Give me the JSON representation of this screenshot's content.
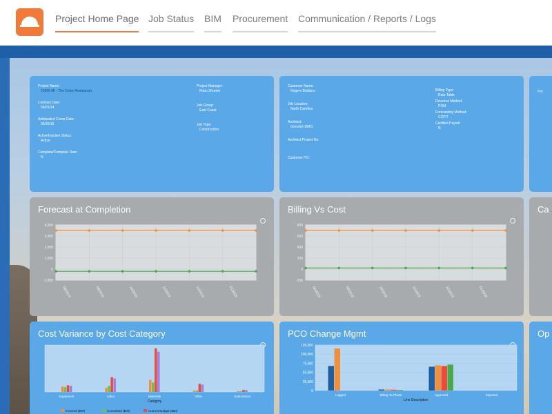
{
  "nav": {
    "logo_icon": "dome-logo-icon",
    "items": [
      {
        "label": "Project Home Page",
        "active": true
      },
      {
        "label": "Job Status",
        "active": false
      },
      {
        "label": "BIM",
        "active": false
      },
      {
        "label": "Procurement",
        "active": false
      },
      {
        "label": "Communication / Reports / Logs",
        "active": false
      }
    ]
  },
  "colors": {
    "accent": "#f07a3a",
    "panel_blue": "#5aa8e8",
    "panel_gray": "#a8abae",
    "header_blue": "#1f5fa8"
  },
  "project_card": {
    "left_fields": [
      {
        "label": "Project Name:",
        "value": "10200 MI - The Dolce Restaurant"
      },
      {
        "label": "Contract Date:",
        "value": "06/01/14"
      },
      {
        "label": "Anticipated Comp Date:",
        "value": "06/30/15"
      },
      {
        "label": "Active/Inactive Status:",
        "value": "Active"
      },
      {
        "label": "Complete/Complete Date:",
        "value": "N"
      }
    ],
    "right_fields": [
      {
        "label": "Project Manager:",
        "value": "Brian Shumer"
      },
      {
        "label": "Job Group:",
        "value": "East Coast"
      },
      {
        "label": "Job Type:",
        "value": "Construction"
      }
    ]
  },
  "customer_card": {
    "left_fields": [
      {
        "label": "Customer Name:",
        "value": "Rogers Builders"
      },
      {
        "label": "Job Location:",
        "value": "North Carolina"
      },
      {
        "label": "Architect:",
        "value": "Grendel IDMG"
      },
      {
        "label": "Architect Project No:",
        "value": ""
      },
      {
        "label": "Customer PO:",
        "value": ""
      }
    ],
    "right_fields": [
      {
        "label": "Billing Type:",
        "value": "Rate Table"
      },
      {
        "label": "Revenue Method:",
        "value": "POM"
      },
      {
        "label": "Forecasting Method:",
        "value": "CCFIT"
      },
      {
        "label": "Certified Payroll:",
        "value": "N"
      }
    ]
  },
  "third_card_label": "Pro",
  "fourth_card_label": "Ca",
  "fifth_card_label": "Op",
  "chart_data": [
    {
      "type": "line",
      "title": "Forecast at Completion",
      "ytick_labels": [
        "4,000",
        "3,000",
        "2,000",
        "1,000",
        "0",
        "-1,000"
      ],
      "xtick_labels": [
        "08/2019",
        "09/2019",
        "10/2019",
        "11/2019",
        "12/2019",
        "01/2020"
      ],
      "series": [
        {
          "color": "#f0903c",
          "values": [
            3.5,
            3.5,
            3.5,
            3.5,
            3.5,
            3.5,
            3.5
          ]
        },
        {
          "color": "#4aa84a",
          "values": [
            -0.2,
            -0.2,
            -0.2,
            -0.2,
            -0.2,
            -0.2,
            -0.2
          ]
        }
      ],
      "ylim": [
        -1,
        4
      ]
    },
    {
      "type": "line",
      "title": "Billing Vs Cost",
      "ytick_labels": [
        "800",
        "600",
        "400",
        "200",
        "0",
        "-200"
      ],
      "xtick_labels": [
        "08/2019",
        "09/2019",
        "10/2019",
        "11/2019",
        "12/2019",
        "01/2020"
      ],
      "series": [
        {
          "color": "#f0903c",
          "values": [
            700,
            700,
            700,
            700,
            700,
            700,
            700
          ]
        },
        {
          "color": "#4aa84a",
          "values": [
            20,
            20,
            20,
            20,
            20,
            20,
            20
          ]
        }
      ],
      "ylim": [
        -200,
        800
      ]
    },
    {
      "type": "bar",
      "title": "Cost Variance by Cost Category",
      "xlabel": "Category",
      "categories": [
        "Equipment",
        "Labor",
        "Materials",
        "Other",
        "Subcontract"
      ],
      "series": [
        {
          "name": "Incurred ($00)",
          "color": "#f0903c",
          "values": [
            8,
            6,
            18,
            2,
            1
          ]
        },
        {
          "name": "Committed ($00)",
          "color": "#6cc24a",
          "values": [
            7,
            9,
            14,
            2,
            1
          ]
        },
        {
          "name": "Current Budget ($00)",
          "color": "#e84c3d",
          "values": [
            10,
            22,
            65,
            12,
            3
          ]
        },
        {
          "color": "#a57fd6",
          "values": [
            9,
            20,
            60,
            11,
            3
          ]
        }
      ],
      "ylim": [
        0,
        70
      ]
    },
    {
      "type": "bar",
      "title": "PCO Change Mgmt",
      "ytick_labels": [
        "125,000",
        "100,000",
        "75,000",
        "50,000",
        "25,000",
        "0"
      ],
      "xlabel": "Line Description",
      "categories": [
        "Logged",
        "Billing To Phase",
        "Approved",
        "Rejected"
      ],
      "series": [
        {
          "color": "#1e5fa0",
          "values": [
            70000,
            3000,
            68000,
            0
          ]
        },
        {
          "color": "#f0903c",
          "values": [
            120000,
            3000,
            72000,
            0
          ]
        },
        {
          "color": "#e84c3d",
          "values": [
            0,
            2500,
            70000,
            0
          ]
        },
        {
          "color": "#4aa84a",
          "values": [
            0,
            2000,
            74000,
            0
          ]
        }
      ],
      "ylim": [
        0,
        130000
      ]
    }
  ]
}
